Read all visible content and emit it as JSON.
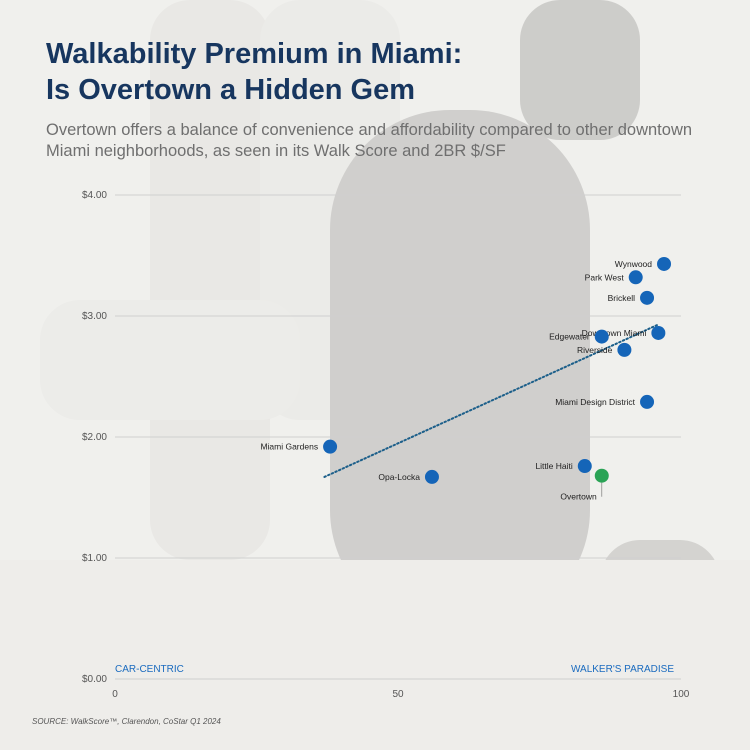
{
  "title_line1": "Walkability Premium in Miami:",
  "title_line2": "Is Overtown a Hidden Gem",
  "subtitle": "Overtown offers a balance of convenience and affordability compared to other downtown Miami neighborhoods, as seen in its Walk Score and 2BR $/SF",
  "source": "SOURCE: WalkScore™, Clarendon, CoStar Q1 2024",
  "colors": {
    "title": "#17365f",
    "point": "#1565b8",
    "highlight": "#2aa355",
    "trendline": "#1c5f8a",
    "axis_annotation": "#1a6bbf"
  },
  "chart_data": {
    "type": "scatter",
    "title": "",
    "xlabel": "",
    "ylabel": "",
    "xlim": [
      0,
      100
    ],
    "ylim": [
      0,
      4
    ],
    "x_ticks": [
      0,
      50,
      100
    ],
    "x_tick_labels": [
      "0",
      "50",
      "100"
    ],
    "y_ticks": [
      0,
      1,
      2,
      3,
      4
    ],
    "y_tick_labels": [
      "$0.00",
      "$1.00",
      "$2.00",
      "$3.00",
      "$4.00"
    ],
    "grid": "horizontal",
    "x_axis_annotations": {
      "low": "CAR-CENTRIC",
      "high": "WALKER'S PARADISE"
    },
    "points": [
      {
        "label": "Wynwood",
        "x": 97,
        "y": 3.43
      },
      {
        "label": "Park West",
        "x": 92,
        "y": 3.32
      },
      {
        "label": "Brickell",
        "x": 94,
        "y": 3.15
      },
      {
        "label": "Downtown Miami",
        "x": 96,
        "y": 2.86
      },
      {
        "label": "Edgewater",
        "x": 86,
        "y": 2.83
      },
      {
        "label": "Riverside",
        "x": 90,
        "y": 2.72
      },
      {
        "label": "Miami Design District",
        "x": 94,
        "y": 2.29
      },
      {
        "label": "Miami Gardens",
        "x": 38,
        "y": 1.92
      },
      {
        "label": "Little Haiti",
        "x": 83,
        "y": 1.76
      },
      {
        "label": "Overtown",
        "x": 86,
        "y": 1.68,
        "highlight": true
      },
      {
        "label": "Opa-Locka",
        "x": 56,
        "y": 1.67
      }
    ],
    "trendline": {
      "x": [
        37,
        96
      ],
      "y": [
        1.67,
        2.93
      ]
    }
  }
}
